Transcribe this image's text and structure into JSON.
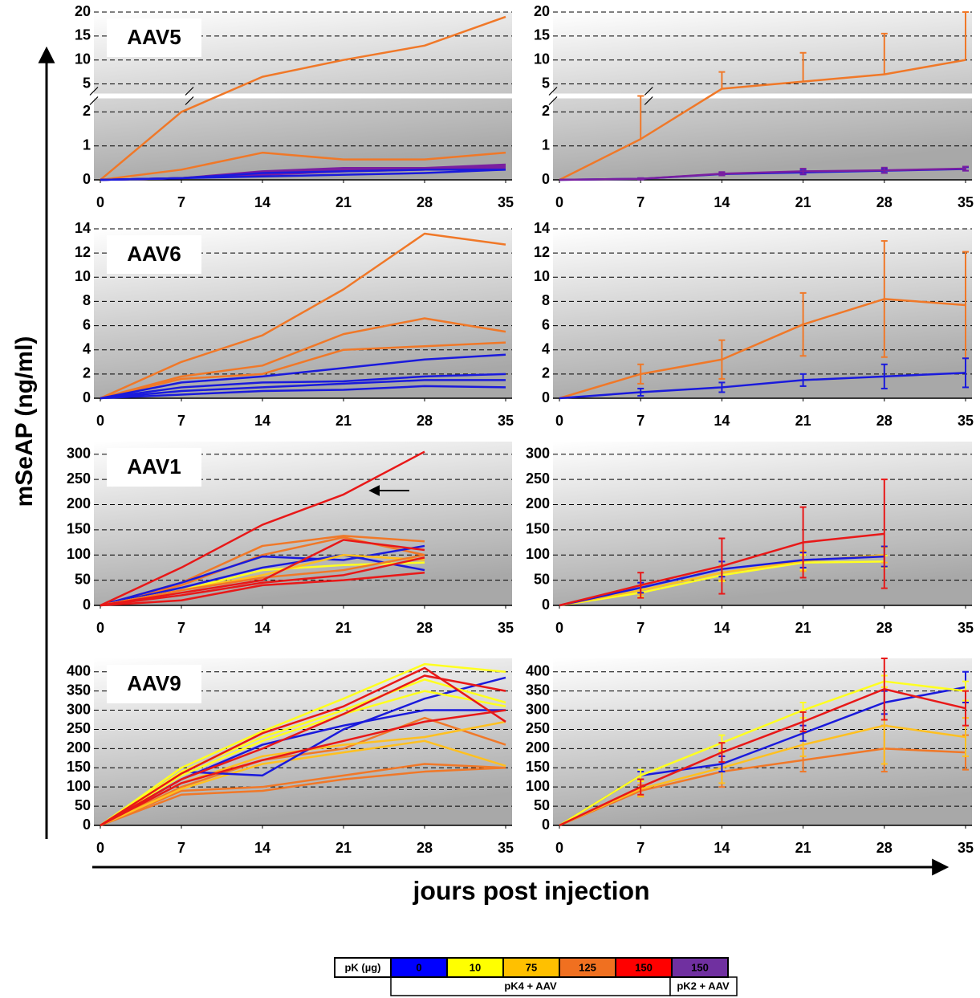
{
  "chart_data": [
    {
      "type": "line",
      "title": "AAV5",
      "x": [
        0,
        7,
        14,
        21,
        28,
        35
      ],
      "xlim": [
        0,
        35
      ],
      "xticks": [
        0,
        7,
        14,
        21,
        28,
        35
      ],
      "ylim": [
        0,
        20
      ],
      "axis_break": [
        2.4,
        3
      ],
      "yticks": [
        0,
        1,
        2,
        5,
        10,
        15,
        20
      ],
      "grid": true,
      "series": [
        {
          "color": "#f07828",
          "values": [
            0,
            2,
            6.5,
            10,
            13,
            19
          ]
        },
        {
          "color": "#f07828",
          "values": [
            0,
            0.3,
            0.8,
            0.6,
            0.6,
            0.8
          ]
        },
        {
          "color": "#7a1fa0",
          "values": [
            0,
            0.05,
            0.25,
            0.35,
            0.35,
            0.45
          ]
        },
        {
          "color": "#7a1fa0",
          "values": [
            0,
            0.05,
            0.2,
            0.3,
            0.3,
            0.4
          ]
        },
        {
          "color": "#7a1fa0",
          "values": [
            0,
            0.05,
            0.15,
            0.25,
            0.3,
            0.35
          ]
        },
        {
          "color": "#1a1adc",
          "values": [
            0,
            0.05,
            0.1,
            0.15,
            0.2,
            0.3
          ]
        },
        {
          "color": "#1a1adc",
          "values": [
            0,
            0.05,
            0.2,
            0.25,
            0.3,
            0.3
          ]
        }
      ]
    },
    {
      "type": "line",
      "x": [
        0,
        7,
        14,
        21,
        28,
        35
      ],
      "xlim": [
        0,
        35
      ],
      "xticks": [
        0,
        7,
        14,
        21,
        28,
        35
      ],
      "ylim": [
        0,
        20
      ],
      "axis_break": [
        2.4,
        3
      ],
      "yticks": [
        0,
        1,
        2,
        5,
        10,
        15,
        20
      ],
      "grid": true,
      "series": [
        {
          "color": "#f07828",
          "error_style": "up",
          "values": [
            0,
            1.2,
            4,
            5.5,
            7,
            10
          ],
          "errors": [
            0,
            1.5,
            3.5,
            6,
            8.5,
            10
          ]
        },
        {
          "color": "#1a1adc",
          "values": [
            0,
            0.03,
            0.17,
            0.22,
            0.27,
            0.32
          ],
          "errors": [
            0,
            0.02,
            0.04,
            0.06,
            0.06,
            0.05
          ]
        },
        {
          "color": "#7a1fa0",
          "values": [
            0,
            0.03,
            0.18,
            0.25,
            0.28,
            0.33
          ],
          "errors": [
            0,
            0.02,
            0.05,
            0.08,
            0.08,
            0.06
          ]
        }
      ]
    },
    {
      "type": "line",
      "title": "AAV6",
      "x": [
        0,
        7,
        14,
        21,
        28,
        35
      ],
      "xlim": [
        0,
        35
      ],
      "xticks": [
        0,
        7,
        14,
        21,
        28,
        35
      ],
      "ylim": [
        0,
        14
      ],
      "yticks": [
        0,
        2,
        4,
        6,
        8,
        10,
        12,
        14
      ],
      "grid": true,
      "series": [
        {
          "color": "#f07828",
          "values": [
            0,
            3,
            5.2,
            9,
            13.6,
            12.7
          ]
        },
        {
          "color": "#f07828",
          "values": [
            0,
            1.8,
            2.7,
            5.3,
            6.6,
            5.5
          ]
        },
        {
          "color": "#f07828",
          "values": [
            0,
            1.6,
            2,
            4,
            4.3,
            4.6
          ]
        },
        {
          "color": "#1a1adc",
          "values": [
            0,
            1.3,
            1.8,
            2.5,
            3.2,
            3.6
          ]
        },
        {
          "color": "#1a1adc",
          "values": [
            0,
            0.9,
            1.3,
            1.4,
            1.8,
            2
          ]
        },
        {
          "color": "#1a1adc",
          "values": [
            0,
            0.6,
            0.9,
            1.2,
            1.5,
            1.5
          ]
        },
        {
          "color": "#1a1adc",
          "values": [
            0,
            0.3,
            0.6,
            0.7,
            1,
            0.9
          ]
        }
      ]
    },
    {
      "type": "line",
      "x": [
        0,
        7,
        14,
        21,
        28,
        35
      ],
      "xlim": [
        0,
        35
      ],
      "xticks": [
        0,
        7,
        14,
        21,
        28,
        35
      ],
      "ylim": [
        0,
        14
      ],
      "yticks": [
        0,
        2,
        4,
        6,
        8,
        10,
        12,
        14
      ],
      "grid": true,
      "series": [
        {
          "color": "#f07828",
          "values": [
            0,
            2,
            3.2,
            6.1,
            8.2,
            7.7
          ],
          "errors": [
            0,
            0.8,
            1.6,
            2.6,
            4.8,
            4.4
          ]
        },
        {
          "color": "#1a1adc",
          "values": [
            0,
            0.5,
            0.9,
            1.5,
            1.8,
            2.1
          ],
          "errors": [
            0,
            0.3,
            0.4,
            0.5,
            1,
            1.2
          ]
        }
      ]
    },
    {
      "type": "line",
      "title": "AAV1",
      "x": [
        0,
        7,
        14,
        21,
        28,
        35
      ],
      "xlim": [
        0,
        35
      ],
      "xticks": [
        0,
        7,
        14,
        21,
        28,
        35
      ],
      "ylim": [
        0,
        325
      ],
      "yticks": [
        0,
        50,
        100,
        150,
        200,
        250,
        300
      ],
      "grid": true,
      "series": [
        {
          "color": "#f07828",
          "values": [
            0,
            45,
            118,
            138,
            127,
            null
          ]
        },
        {
          "color": "#f07828",
          "values": [
            0,
            40,
            100,
            135,
            100,
            null
          ]
        },
        {
          "color": "#1a1adc",
          "values": [
            0,
            45,
            97,
            90,
            118,
            null
          ]
        },
        {
          "color": "#1a1adc",
          "values": [
            0,
            35,
            75,
            100,
            70,
            null
          ]
        },
        {
          "color": "#ffff20",
          "values": [
            0,
            30,
            70,
            80,
            85,
            null
          ]
        },
        {
          "color": "#ffc020",
          "values": [
            0,
            30,
            60,
            100,
            90,
            null
          ]
        },
        {
          "color": "#f07828",
          "values": [
            0,
            30,
            55,
            70,
            100,
            null
          ]
        },
        {
          "color": "#e81818",
          "values": [
            0,
            25,
            50,
            130,
            110,
            null
          ]
        },
        {
          "color": "#e81818",
          "values": [
            0,
            20,
            45,
            60,
            95,
            null
          ]
        },
        {
          "color": "#e81818",
          "values": [
            0,
            10,
            40,
            50,
            65,
            null
          ]
        },
        {
          "color": "#e81818",
          "values": [
            0,
            75,
            160,
            220,
            305,
            null
          ]
        }
      ]
    },
    {
      "type": "line",
      "x": [
        0,
        7,
        14,
        21,
        28,
        35
      ],
      "xlim": [
        0,
        35
      ],
      "xticks": [
        0,
        7,
        14,
        21,
        28,
        35
      ],
      "ylim": [
        0,
        325
      ],
      "yticks": [
        0,
        50,
        100,
        150,
        200,
        250,
        300
      ],
      "grid": true,
      "series": [
        {
          "color": "#ffff20",
          "values": [
            0,
            25,
            60,
            85,
            87,
            null
          ],
          "errors": [
            0,
            8,
            12,
            15,
            12,
            null
          ]
        },
        {
          "color": "#ffc020",
          "values": [
            0,
            30,
            65,
            88,
            100,
            null
          ],
          "errors": [
            0,
            8,
            15,
            20,
            15,
            null
          ]
        },
        {
          "color": "#1a1adc",
          "values": [
            0,
            35,
            72,
            90,
            97,
            null
          ],
          "errors": [
            0,
            10,
            15,
            15,
            20,
            null
          ]
        },
        {
          "color": "#e81818",
          "values": [
            0,
            40,
            78,
            125,
            142,
            null
          ],
          "errors": [
            0,
            25,
            55,
            70,
            108,
            null
          ]
        }
      ]
    },
    {
      "type": "line",
      "title": "AAV9",
      "x": [
        0,
        7,
        14,
        21,
        28,
        35
      ],
      "xlim": [
        0,
        35
      ],
      "xticks": [
        0,
        7,
        14,
        21,
        28,
        35
      ],
      "ylim": [
        0,
        435
      ],
      "yticks": [
        0,
        50,
        100,
        150,
        200,
        250,
        300,
        350,
        400
      ],
      "grid": true,
      "series": [
        {
          "color": "#f07828",
          "values": [
            0,
            90,
            100,
            130,
            160,
            150
          ]
        },
        {
          "color": "#f07828",
          "values": [
            0,
            80,
            90,
            120,
            140,
            150
          ]
        },
        {
          "color": "#f07828",
          "values": [
            0,
            100,
            170,
            200,
            280,
            210
          ]
        },
        {
          "color": "#ffc020",
          "values": [
            0,
            95,
            160,
            190,
            220,
            155
          ]
        },
        {
          "color": "#ffc020",
          "values": [
            0,
            110,
            180,
            210,
            230,
            270
          ]
        },
        {
          "color": "#1a1adc",
          "values": [
            0,
            140,
            130,
            250,
            330,
            385
          ]
        },
        {
          "color": "#1a1adc",
          "values": [
            0,
            120,
            210,
            260,
            300,
            300
          ]
        },
        {
          "color": "#ffff20",
          "values": [
            0,
            150,
            245,
            330,
            420,
            400
          ]
        },
        {
          "color": "#ffff20",
          "values": [
            0,
            140,
            230,
            300,
            380,
            320
          ]
        },
        {
          "color": "#ffff20",
          "values": [
            0,
            130,
            220,
            290,
            350,
            310
          ]
        },
        {
          "color": "#e81818",
          "values": [
            0,
            135,
            240,
            310,
            410,
            270
          ]
        },
        {
          "color": "#e81818",
          "values": [
            0,
            120,
            200,
            290,
            390,
            350
          ]
        },
        {
          "color": "#e81818",
          "values": [
            0,
            110,
            170,
            220,
            270,
            300
          ]
        }
      ]
    },
    {
      "type": "line",
      "x": [
        0,
        7,
        14,
        21,
        28,
        35
      ],
      "xlim": [
        0,
        35
      ],
      "xticks": [
        0,
        7,
        14,
        21,
        28,
        35
      ],
      "ylim": [
        0,
        435
      ],
      "yticks": [
        0,
        50,
        100,
        150,
        200,
        250,
        300,
        350,
        400
      ],
      "grid": true,
      "series": [
        {
          "color": "#f07828",
          "values": [
            0,
            90,
            140,
            170,
            200,
            190
          ],
          "errors": [
            0,
            15,
            40,
            30,
            60,
            45
          ]
        },
        {
          "color": "#ffc020",
          "values": [
            0,
            95,
            150,
            210,
            260,
            230
          ],
          "errors": [
            0,
            20,
            40,
            30,
            100,
            50
          ]
        },
        {
          "color": "#1a1adc",
          "values": [
            0,
            130,
            160,
            240,
            320,
            360
          ],
          "errors": [
            0,
            10,
            20,
            20,
            30,
            40
          ]
        },
        {
          "color": "#ffff20",
          "values": [
            0,
            130,
            215,
            300,
            375,
            350
          ],
          "errors": [
            0,
            15,
            20,
            20,
            15,
            25
          ]
        },
        {
          "color": "#e81818",
          "values": [
            0,
            100,
            190,
            270,
            355,
            305
          ],
          "errors": [
            0,
            20,
            25,
            25,
            80,
            45
          ]
        }
      ]
    }
  ],
  "axis_titles": {
    "y": "mSeAP (ng/ml)",
    "x": "jours post injection"
  },
  "legend": {
    "header": "pK (µg)",
    "items": [
      {
        "label": "0",
        "color": "#0000ff"
      },
      {
        "label": "10",
        "color": "#ffff00"
      },
      {
        "label": "75",
        "color": "#ffc000"
      },
      {
        "label": "125",
        "color": "#f07020"
      },
      {
        "label": "150",
        "color": "#ff0000"
      },
      {
        "label": "150",
        "color": "#7030a0"
      }
    ],
    "groups": [
      {
        "label": "pK4 + AAV"
      },
      {
        "label": "pK2 + AAV"
      }
    ]
  }
}
